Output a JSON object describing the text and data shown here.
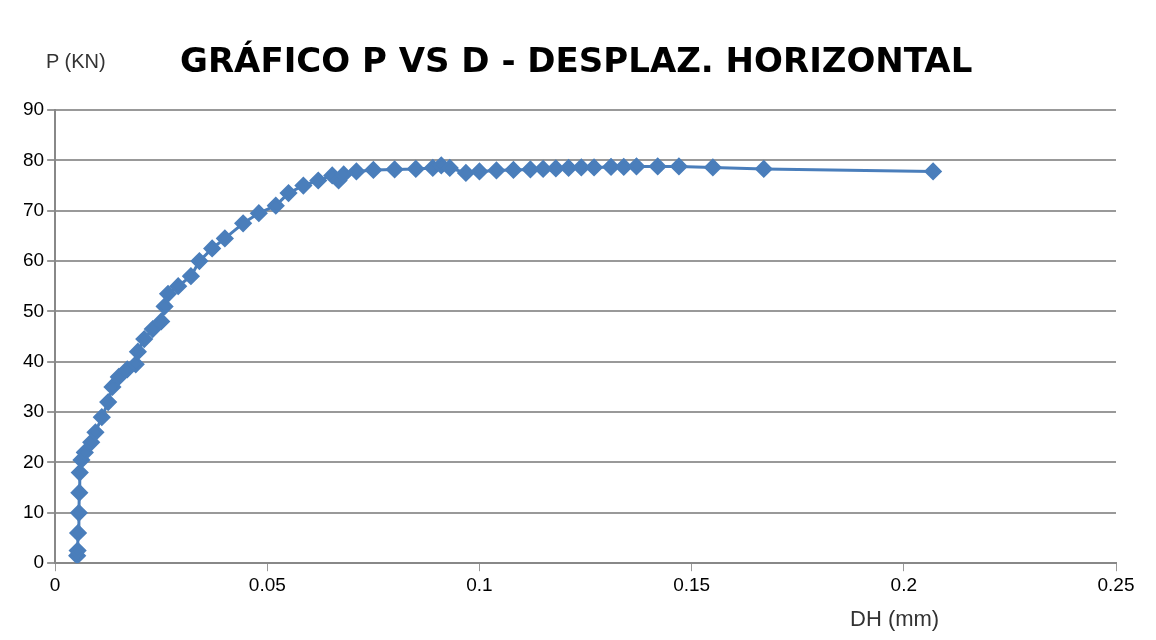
{
  "chart_data": {
    "type": "line",
    "title": "GRÁFICO P VS D - DESPLAZ. HORIZONTAL",
    "ylabel": "P (KN)",
    "xlabel": "DH (mm)",
    "x": [
      0.0052,
      0.0053,
      0.0054,
      0.0056,
      0.0057,
      0.0058,
      0.0062,
      0.007,
      0.0085,
      0.0095,
      0.011,
      0.0125,
      0.0135,
      0.015,
      0.017,
      0.019,
      0.0195,
      0.021,
      0.023,
      0.025,
      0.0258,
      0.0266,
      0.029,
      0.032,
      0.034,
      0.037,
      0.04,
      0.0443,
      0.048,
      0.052,
      0.055,
      0.0585,
      0.062,
      0.0653,
      0.0668,
      0.068,
      0.071,
      0.075,
      0.08,
      0.085,
      0.089,
      0.091,
      0.093,
      0.0968,
      0.1,
      0.104,
      0.108,
      0.112,
      0.115,
      0.118,
      0.121,
      0.124,
      0.127,
      0.131,
      0.134,
      0.137,
      0.142,
      0.147,
      0.155,
      0.167,
      0.2069
    ],
    "series": [
      {
        "color": "#4a7ebb",
        "values": [
          1.5,
          2.5,
          6,
          10,
          14,
          18,
          20.5,
          22,
          24,
          26,
          29,
          32,
          35,
          37,
          38.5,
          39.5,
          42,
          44.5,
          46.5,
          48,
          51,
          53.5,
          55,
          57,
          60,
          62.5,
          64.5,
          67.5,
          69.5,
          71,
          73.5,
          75,
          76,
          77,
          76,
          77.2,
          77.8,
          78.1,
          78.2,
          78.3,
          78.5,
          79,
          78.5,
          77.5,
          77.8,
          78,
          78.1,
          78.2,
          78.3,
          78.4,
          78.5,
          78.6,
          78.6,
          78.7,
          78.7,
          78.8,
          78.8,
          78.8,
          78.6,
          78.3,
          77.8
        ]
      }
    ],
    "xlim": [
      0,
      0.25
    ],
    "xticks": [
      0,
      0.05,
      0.1,
      0.15,
      0.2,
      0.25
    ],
    "ylim": [
      0,
      90
    ],
    "yticks": [
      0,
      10,
      20,
      30,
      40,
      50,
      60,
      70,
      80,
      90
    ],
    "grid": "y",
    "legend": false,
    "marker": "diamond",
    "line_style": "solid"
  }
}
